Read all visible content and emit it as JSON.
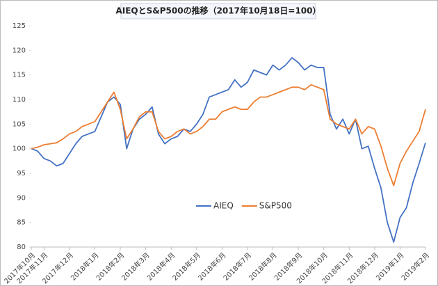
{
  "chart_data": {
    "type": "line",
    "title": "AIEQとS&P500の推移（2017年10月18日=100）",
    "categories": [
      "2017年10月",
      null,
      "2017年11月",
      null,
      null,
      null,
      "2017年12月",
      null,
      null,
      null,
      "2018年1月",
      null,
      null,
      null,
      "2018年2月",
      null,
      null,
      null,
      "2018年3月",
      null,
      null,
      null,
      "2018年4月",
      null,
      null,
      null,
      "2018年5月",
      null,
      null,
      null,
      "2018年6月",
      null,
      null,
      null,
      "2018年7月",
      null,
      null,
      null,
      "2018年8月",
      null,
      null,
      null,
      "2018年9月",
      null,
      null,
      null,
      "2018年10月",
      null,
      null,
      null,
      "2018年11月",
      null,
      null,
      null,
      "2018年12月",
      null,
      null,
      null,
      "2019年1月",
      null,
      null,
      null,
      "2019年2月"
    ],
    "series": [
      {
        "name": "AIEQ",
        "color": "#4472c4",
        "values": [
          100,
          99.5,
          98,
          97.5,
          96.5,
          97,
          99,
          101,
          102.5,
          103,
          103.5,
          106.5,
          109.5,
          110.5,
          109,
          100,
          104,
          106,
          107,
          108.5,
          103,
          101,
          102,
          102.5,
          104,
          103.5,
          105,
          107,
          110.5,
          111,
          111.5,
          112,
          114,
          112.5,
          113.5,
          116,
          115.5,
          115,
          117,
          116,
          117,
          118.5,
          117.5,
          116,
          117,
          116.5,
          116.5,
          107,
          104,
          106,
          103,
          106,
          100,
          100.5,
          96,
          92,
          85,
          81,
          86,
          88,
          93,
          97,
          101.2
        ]
      },
      {
        "name": "S&P500",
        "color": "#ed7d31",
        "values": [
          100,
          100.3,
          100.8,
          101,
          101.2,
          102,
          103,
          103.5,
          104.5,
          105,
          105.5,
          107.5,
          109.5,
          111.5,
          108,
          102,
          104,
          106.5,
          107.5,
          107.5,
          103.5,
          102,
          102.5,
          103.5,
          104,
          103,
          103.5,
          104.5,
          106,
          106,
          107.5,
          108,
          108.5,
          108,
          108,
          109.5,
          110.5,
          110.5,
          111,
          111.5,
          112,
          112.5,
          112.5,
          112,
          113,
          112.5,
          112,
          106,
          105,
          104.5,
          104,
          106,
          103,
          104.5,
          104,
          100.5,
          96,
          92.5,
          97,
          99.5,
          101.5,
          103.5,
          108
        ]
      }
    ],
    "ylim": [
      80,
      125
    ],
    "yticks": [
      80,
      85,
      90,
      95,
      100,
      105,
      110,
      115,
      120,
      125
    ],
    "grid": false
  }
}
